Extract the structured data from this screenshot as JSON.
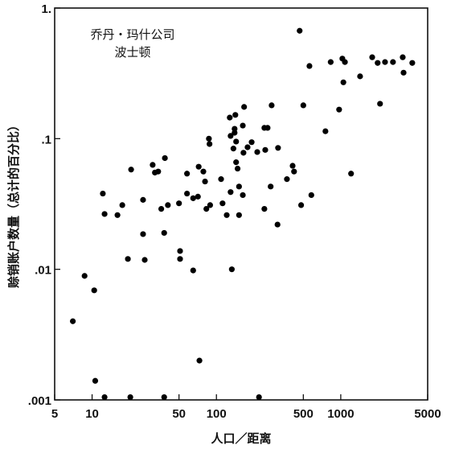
{
  "chart_data": {
    "type": "scatter",
    "annotations": [
      "乔丹・玛什公司",
      "波士顿"
    ],
    "xlabel": "人口／距离",
    "ylabel": "赊销账户数量（总计的百分比）",
    "xscale": "log",
    "yscale": "log",
    "color": "#000000",
    "xlim": [
      5,
      5000
    ],
    "ylim": [
      0.001,
      1
    ],
    "xticks": [
      5,
      10,
      50,
      100,
      500,
      1000,
      5000
    ],
    "yticks": [
      {
        "value": 0.001,
        "label": ".001"
      },
      {
        "value": 0.01,
        "label": ".01"
      },
      {
        "value": 0.1,
        "label": ".1"
      },
      {
        "value": 1,
        "label": "1."
      }
    ],
    "x": [
      7.0,
      8.7,
      10.4,
      10.6,
      12.6,
      12.2,
      12.6,
      16,
      17.5,
      20.6,
      19.4,
      20.3,
      25.7,
      25.7,
      26.5,
      30.7,
      32,
      34,
      36,
      38.5,
      38,
      38,
      40.7,
      51,
      51,
      50,
      58,
      58,
      65,
      65,
      71,
      72,
      73,
      78.5,
      81,
      83,
      87,
      88,
      89,
      109,
      112,
      121,
      128,
      130,
      130,
      133,
      137,
      140,
      142,
      144,
      140,
      144,
      148,
      152,
      152,
      163,
      163,
      165,
      167,
      178,
      192,
      213,
      220,
      243,
      258,
      247,
      243,
      278,
      273,
      313,
      310,
      369,
      421,
      410,
      467,
      480,
      500,
      560,
      580,
      753,
      830,
      970,
      1030,
      1080,
      1050,
      1210,
      1430,
      1790,
      1980,
      2070,
      2270,
      2630,
      3150,
      3200,
      3760
    ],
    "values": [
      0.004,
      0.0089,
      0.0069,
      0.0014,
      0.00105,
      0.038,
      0.0265,
      0.026,
      0.031,
      0.058,
      0.012,
      0.00105,
      0.034,
      0.0186,
      0.0118,
      0.063,
      0.055,
      0.056,
      0.029,
      0.071,
      0.019,
      0.00105,
      0.031,
      0.0138,
      0.012,
      0.032,
      0.054,
      0.038,
      0.0098,
      0.035,
      0.036,
      0.061,
      0.002,
      0.056,
      0.047,
      0.029,
      0.1,
      0.091,
      0.031,
      0.049,
      0.032,
      0.026,
      0.145,
      0.105,
      0.039,
      0.01,
      0.084,
      0.119,
      0.152,
      0.095,
      0.111,
      0.066,
      0.059,
      0.043,
      0.026,
      0.126,
      0.037,
      0.078,
      0.175,
      0.086,
      0.094,
      0.079,
      0.00105,
      0.121,
      0.121,
      0.082,
      0.029,
      0.18,
      0.043,
      0.085,
      0.022,
      0.049,
      0.056,
      0.062,
      0.67,
      0.031,
      0.18,
      0.36,
      0.037,
      0.114,
      0.386,
      0.167,
      0.41,
      0.386,
      0.27,
      0.054,
      0.3,
      0.42,
      0.38,
      0.185,
      0.386,
      0.386,
      0.42,
      0.32,
      0.38
    ]
  }
}
